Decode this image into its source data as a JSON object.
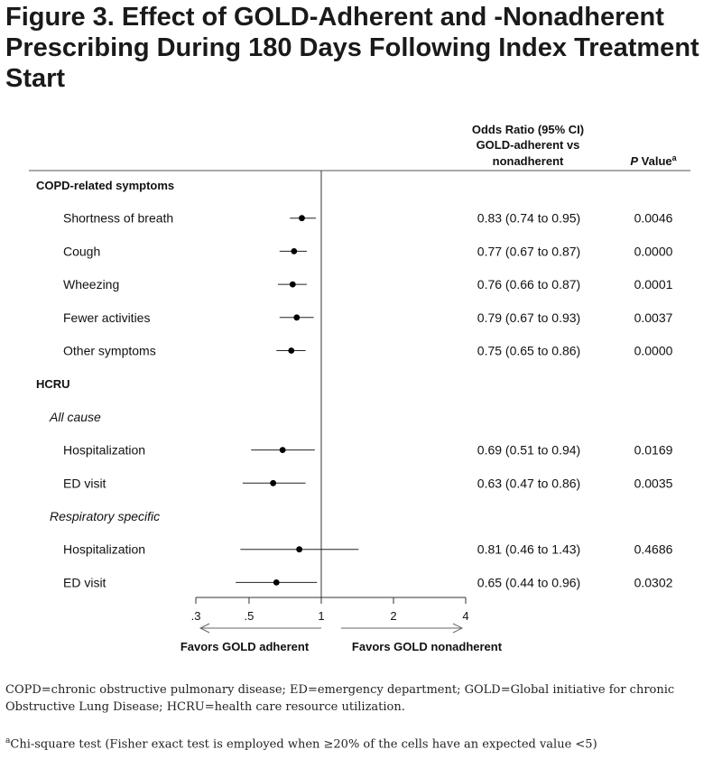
{
  "figure_title": "Figure 3. Effect of GOLD-Adherent and -Nonadherent Prescribing During 180 Days Following Index Treatment Start",
  "chart_data": {
    "type": "forest",
    "xscale": "log",
    "xlim": [
      0.3,
      4
    ],
    "reference_line": 1,
    "xticks": [
      {
        "value": 0.3,
        "label": ".3"
      },
      {
        "value": 0.5,
        "label": ".5"
      },
      {
        "value": 1,
        "label": "1"
      },
      {
        "value": 2,
        "label": "2"
      },
      {
        "value": 4,
        "label": "4"
      }
    ],
    "column_headers": {
      "or_line1": "Odds Ratio (95% CI)",
      "or_line2": "GOLD-adherent vs",
      "or_line3": "nonadherent",
      "p_italic": "P",
      "p_rest": " Value",
      "p_sup": "a"
    },
    "rows": [
      {
        "kind": "section",
        "label": "COPD-related symptoms"
      },
      {
        "kind": "item",
        "label": "Shortness of breath",
        "or": 0.83,
        "lo": 0.74,
        "hi": 0.95,
        "or_text": "0.83 (0.74 to 0.95)",
        "p_text": "0.0046"
      },
      {
        "kind": "item",
        "label": "Cough",
        "or": 0.77,
        "lo": 0.67,
        "hi": 0.87,
        "or_text": "0.77 (0.67 to 0.87)",
        "p_text": "0.0000"
      },
      {
        "kind": "item",
        "label": "Wheezing",
        "or": 0.76,
        "lo": 0.66,
        "hi": 0.87,
        "or_text": "0.76 (0.66 to 0.87)",
        "p_text": "0.0001"
      },
      {
        "kind": "item",
        "label": "Fewer activities",
        "or": 0.79,
        "lo": 0.67,
        "hi": 0.93,
        "or_text": "0.79 (0.67 to 0.93)",
        "p_text": "0.0037"
      },
      {
        "kind": "item",
        "label": "Other symptoms",
        "or": 0.75,
        "lo": 0.65,
        "hi": 0.86,
        "or_text": "0.75 (0.65 to 0.86)",
        "p_text": "0.0000"
      },
      {
        "kind": "section",
        "label": "HCRU"
      },
      {
        "kind": "subsection",
        "label": "All cause"
      },
      {
        "kind": "item",
        "label": "Hospitalization",
        "or": 0.69,
        "lo": 0.51,
        "hi": 0.94,
        "or_text": "0.69 (0.51 to 0.94)",
        "p_text": "0.0169"
      },
      {
        "kind": "item",
        "label": "ED visit",
        "or": 0.63,
        "lo": 0.47,
        "hi": 0.86,
        "or_text": "0.63 (0.47 to 0.86)",
        "p_text": "0.0035"
      },
      {
        "kind": "subsection",
        "label": "Respiratory specific"
      },
      {
        "kind": "item",
        "label": "Hospitalization",
        "or": 0.81,
        "lo": 0.46,
        "hi": 1.43,
        "or_text": "0.81 (0.46 to 1.43)",
        "p_text": "0.4686"
      },
      {
        "kind": "item",
        "label": "ED visit",
        "or": 0.65,
        "lo": 0.44,
        "hi": 0.96,
        "or_text": "0.65 (0.44 to 0.96)",
        "p_text": "0.0302"
      }
    ],
    "favors_left": "Favors GOLD adherent",
    "favors_right": "Favors GOLD nonadherent"
  },
  "footnotes": {
    "abbreviations": "COPD=chronic obstructive pulmonary disease; ED=emergency department; GOLD=Global initiative for chronic Obstructive Lung Disease; HCRU=health care resource utilization.",
    "a_marker": "a",
    "a_text": "Chi-square test (Fisher exact test is employed when ≥20% of the cells have an expected value <5)"
  }
}
